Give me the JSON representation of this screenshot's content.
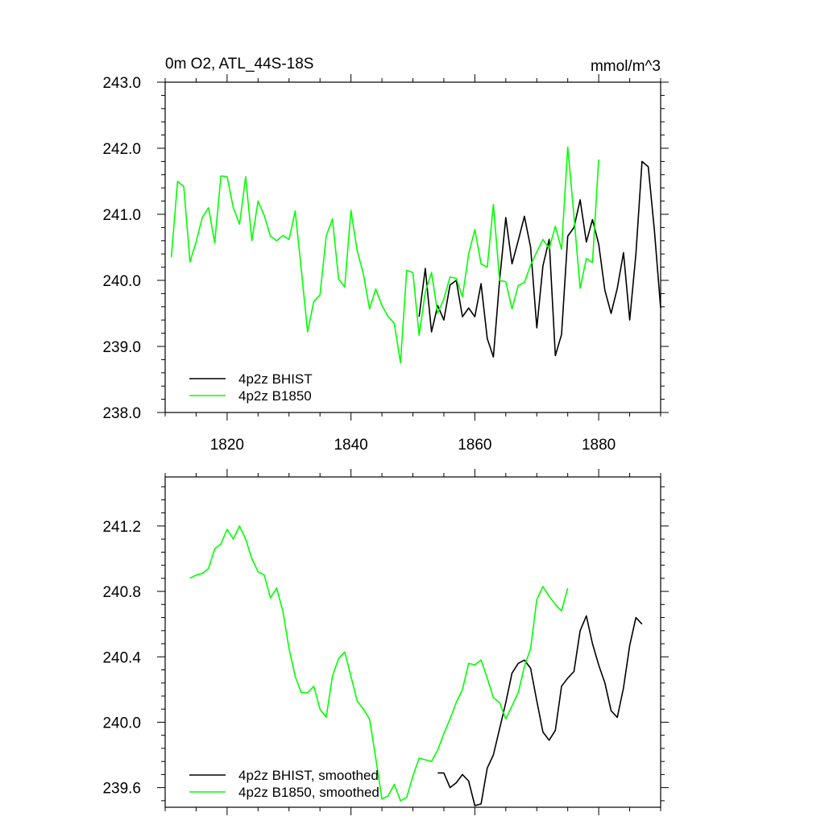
{
  "chart_data": [
    {
      "type": "line",
      "title": "0m O2, ATL_44S-18S",
      "units": "mmol/m^3",
      "xlim": [
        1810,
        1890
      ],
      "ylim": [
        238.0,
        243.0
      ],
      "x_ticks": [
        1820,
        1840,
        1860,
        1880
      ],
      "y_ticks": [
        238.0,
        239.0,
        240.0,
        241.0,
        242.0,
        243.0
      ],
      "y_tick_labels": [
        "238.0",
        "239.0",
        "240.0",
        "241.0",
        "242.0",
        "243.0"
      ],
      "legend_position": "bottom-left",
      "series": [
        {
          "name": "4p2z BHIST",
          "color": "#000000",
          "x_start": 1851,
          "values": [
            239.45,
            240.18,
            239.22,
            239.62,
            239.4,
            239.93,
            240.0,
            239.45,
            239.58,
            239.45,
            239.95,
            239.12,
            238.84,
            240.0,
            240.95,
            240.25,
            240.6,
            240.97,
            240.5,
            239.28,
            240.22,
            240.62,
            238.86,
            239.18,
            240.67,
            240.8,
            241.22,
            240.58,
            240.92,
            240.55,
            239.85,
            239.5,
            239.88,
            240.42,
            239.4,
            240.4,
            241.8,
            241.72,
            240.75,
            239.58
          ]
        },
        {
          "name": "4p2z B1850",
          "color": "#00ff00",
          "x_start": 1811,
          "values": [
            240.35,
            241.5,
            241.42,
            240.28,
            240.58,
            240.95,
            241.1,
            240.57,
            241.58,
            241.57,
            241.1,
            240.85,
            241.57,
            240.6,
            241.2,
            240.98,
            240.67,
            240.6,
            240.68,
            240.62,
            241.05,
            240.15,
            239.22,
            239.68,
            239.78,
            240.67,
            240.93,
            240.02,
            239.9,
            241.06,
            240.45,
            240.1,
            239.57,
            239.87,
            239.62,
            239.45,
            239.35,
            238.75,
            240.15,
            240.12,
            239.17,
            239.82,
            240.12,
            239.5,
            239.72,
            240.05,
            240.03,
            239.75,
            240.4,
            240.77,
            240.25,
            240.2,
            241.15,
            240.0,
            239.98,
            239.57,
            239.92,
            239.97,
            240.23,
            240.43,
            240.62,
            240.48,
            240.82,
            240.47,
            242.02,
            240.97,
            239.88,
            240.33,
            240.27,
            241.83
          ]
        }
      ]
    },
    {
      "type": "line",
      "xlim": [
        1810,
        1890
      ],
      "ylim": [
        239.48,
        241.5
      ],
      "y_ticks": [
        239.6,
        240.0,
        240.4,
        240.8,
        241.2
      ],
      "y_tick_labels": [
        "239.6",
        "240.0",
        "240.4",
        "240.8",
        "241.2"
      ],
      "legend_position": "bottom-left",
      "series": [
        {
          "name": "4p2z BHIST, smoothed",
          "color": "#000000",
          "x_start": 1854,
          "values": [
            239.69,
            239.69,
            239.6,
            239.63,
            239.68,
            239.64,
            239.49,
            239.5,
            239.72,
            239.8,
            239.96,
            240.12,
            240.3,
            240.36,
            240.38,
            240.33,
            240.13,
            239.94,
            239.89,
            239.95,
            240.22,
            240.27,
            240.31,
            240.56,
            240.65,
            240.48,
            240.35,
            240.24,
            240.07,
            240.03,
            240.21,
            240.47,
            240.64,
            240.6
          ]
        },
        {
          "name": "4p2z B1850, smoothed",
          "color": "#00ff00",
          "x_start": 1814,
          "values": [
            240.88,
            240.9,
            240.91,
            240.94,
            241.06,
            241.09,
            241.18,
            241.12,
            241.2,
            241.12,
            241.0,
            240.92,
            240.9,
            240.76,
            240.82,
            240.68,
            240.45,
            240.28,
            240.18,
            240.18,
            240.22,
            240.08,
            240.03,
            240.28,
            240.39,
            240.43,
            240.28,
            240.13,
            240.08,
            240.02,
            239.78,
            239.53,
            239.55,
            239.62,
            239.52,
            239.54,
            239.67,
            239.78,
            239.77,
            239.76,
            239.83,
            239.93,
            240.02,
            240.12,
            240.2,
            240.36,
            240.35,
            240.38,
            240.27,
            240.15,
            240.12,
            240.02,
            240.1,
            240.18,
            240.34,
            240.45,
            240.75,
            240.83,
            240.77,
            240.72,
            240.68,
            240.82
          ]
        }
      ]
    }
  ]
}
